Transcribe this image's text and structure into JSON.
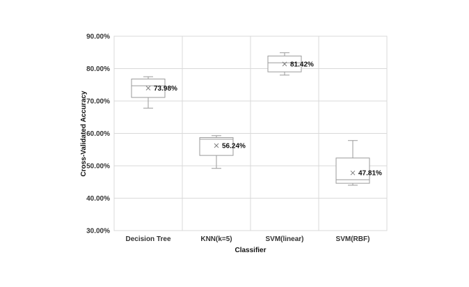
{
  "chart_data": {
    "type": "box",
    "xlabel": "Classifier",
    "ylabel": "Cross-Validated Accuracy",
    "ylim": [
      30,
      90
    ],
    "yticks": [
      30,
      40,
      50,
      60,
      70,
      80,
      90
    ],
    "ytick_labels": [
      "30.00%",
      "40.00%",
      "50.00%",
      "60.00%",
      "70.00%",
      "80.00%",
      "90.00%"
    ],
    "grid": true,
    "categories": [
      "Decision Tree",
      "KNN(k=5)",
      "SVM(linear)",
      "SVM(RBF)"
    ],
    "boxes": [
      {
        "category": "Decision Tree",
        "min": 67.8,
        "q1": 71.1,
        "median": 74.7,
        "q3": 76.8,
        "max": 77.5,
        "mean": 73.98,
        "mean_label": "73.98%"
      },
      {
        "category": "KNN(k=5)",
        "min": 49.2,
        "q1": 53.2,
        "median": 58.2,
        "q3": 58.7,
        "max": 59.3,
        "mean": 56.24,
        "mean_label": "56.24%"
      },
      {
        "category": "SVM(linear)",
        "min": 78.0,
        "q1": 79.0,
        "median": 81.8,
        "q3": 83.9,
        "max": 84.9,
        "mean": 81.42,
        "mean_label": "81.42%"
      },
      {
        "category": "SVM(RBF)",
        "min": 44.0,
        "q1": 44.6,
        "median": 45.7,
        "q3": 52.4,
        "max": 57.8,
        "mean": 47.81,
        "mean_label": "47.81%"
      }
    ],
    "colors": {
      "box": "#9a9a9a",
      "grid": "#d9d9d9",
      "mean_marker": "#7f7f7f"
    }
  }
}
